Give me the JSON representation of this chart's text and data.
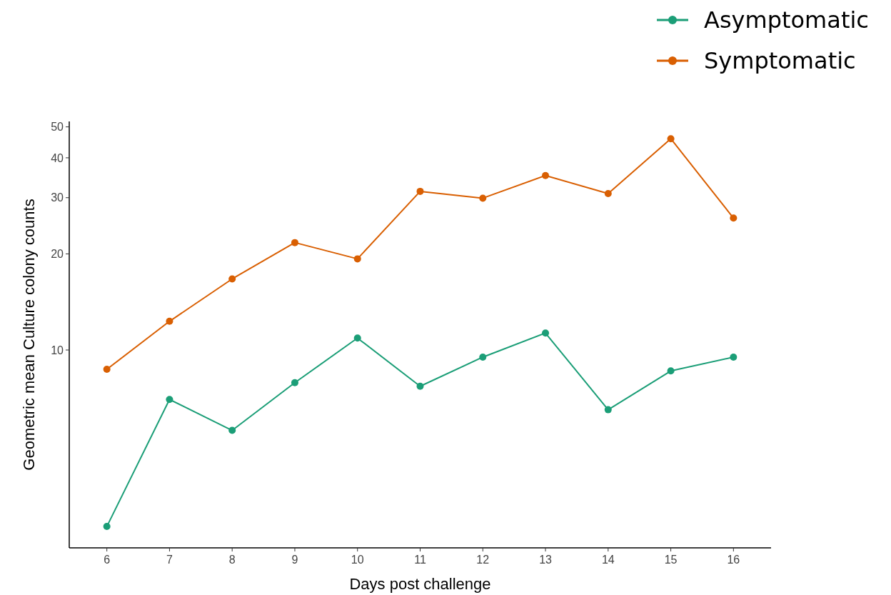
{
  "chart_data": {
    "type": "line",
    "xlabel": "Days post challenge",
    "ylabel": "Geometric mean Culture colony counts",
    "x": [
      6,
      7,
      8,
      9,
      10,
      11,
      12,
      13,
      14,
      15,
      16
    ],
    "xlim": [
      5.4,
      16.6
    ],
    "xticks": [
      6,
      7,
      8,
      9,
      10,
      11,
      12,
      13,
      14,
      15,
      16
    ],
    "ylim": [
      2.4,
      52
    ],
    "yticks": [
      10,
      20,
      30,
      40,
      50
    ],
    "log": "y",
    "grid": false,
    "legend": "top right",
    "marker": "circle",
    "line_style": "solid",
    "series": [
      {
        "name": "Asymptomatic",
        "color": "#1b9e77",
        "values": [
          2.8,
          7,
          5.6,
          7.9,
          10.9,
          7.7,
          9.5,
          11.3,
          6.5,
          8.6,
          9.5
        ]
      },
      {
        "name": "Symptomatic",
        "color": "#d95f02",
        "values": [
          8.7,
          12.3,
          16.7,
          21.7,
          19.3,
          31.4,
          29.9,
          35.2,
          30.9,
          45.9,
          25.9
        ]
      }
    ]
  }
}
